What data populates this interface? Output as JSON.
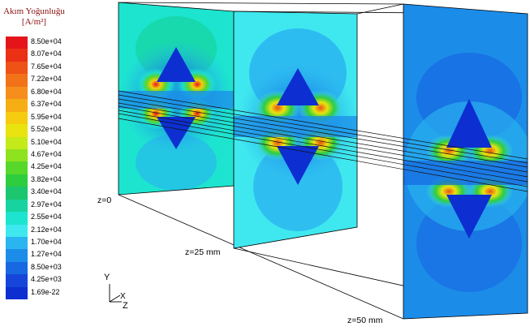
{
  "legend": {
    "title_line1": "Akım Yoğunluğu",
    "title_line2": "[A/m²]",
    "entries": [
      {
        "label": "8.50e+04",
        "color": "#e4141a"
      },
      {
        "label": "8.07e+04",
        "color": "#ea3015"
      },
      {
        "label": "7.65e+04",
        "color": "#ee5216"
      },
      {
        "label": "7.22e+04",
        "color": "#f2721a"
      },
      {
        "label": "6.80e+04",
        "color": "#f58e1d"
      },
      {
        "label": "6.37e+04",
        "color": "#f6ae14"
      },
      {
        "label": "5.95e+04",
        "color": "#f5cc0f"
      },
      {
        "label": "5.52e+04",
        "color": "#e9e30f"
      },
      {
        "label": "5.10e+04",
        "color": "#c4ea1a"
      },
      {
        "label": "4.67e+04",
        "color": "#8fe21e"
      },
      {
        "label": "4.25e+04",
        "color": "#57d72a"
      },
      {
        "label": "3.82e+04",
        "color": "#2ecd3e"
      },
      {
        "label": "3.40e+04",
        "color": "#1cc66e"
      },
      {
        "label": "2.97e+04",
        "color": "#17d3a0"
      },
      {
        "label": "2.55e+04",
        "color": "#1de4cf"
      },
      {
        "label": "2.12e+04",
        "color": "#3fe8ef"
      },
      {
        "label": "1.70e+04",
        "color": "#2ab4f0"
      },
      {
        "label": "1.27e+04",
        "color": "#1c8ce9"
      },
      {
        "label": "8.50e+03",
        "color": "#1768e1"
      },
      {
        "label": "4.25e+03",
        "color": "#1546d9"
      },
      {
        "label": "1.69e-22",
        "color": "#0d2fd1"
      }
    ]
  },
  "slices": [
    {
      "label": "z=0"
    },
    {
      "label": "z=25 mm"
    },
    {
      "label": "z=50 mm"
    }
  ],
  "axes": {
    "y": "Y",
    "x": "X",
    "z": "Z"
  }
}
